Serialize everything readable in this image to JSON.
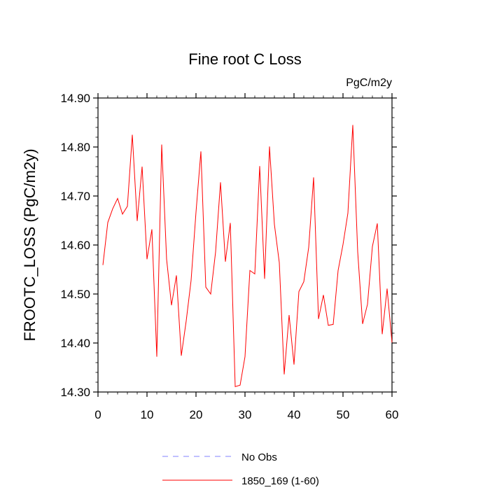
{
  "chart_data": {
    "type": "line",
    "title": "Fine root C Loss",
    "units": "PgC/m2y",
    "ylabel": "FROOTC_LOSS  (PgC/m2y)",
    "xlabel": "",
    "xlim": [
      0,
      60
    ],
    "ylim": [
      14.3,
      14.9
    ],
    "x_ticks": [
      0,
      10,
      20,
      30,
      40,
      50,
      60
    ],
    "y_ticks": [
      14.3,
      14.4,
      14.5,
      14.6,
      14.7,
      14.8,
      14.9
    ],
    "x_tick_labels": [
      "0",
      "10",
      "20",
      "30",
      "40",
      "50",
      "60"
    ],
    "y_tick_labels": [
      "14.30",
      "14.40",
      "14.50",
      "14.60",
      "14.70",
      "14.80",
      "14.90"
    ],
    "grid": false,
    "legend_position": "bottom",
    "series": [
      {
        "name": "1850_169 (1-60)",
        "color": "#ff0000",
        "style": "solid",
        "x": [
          1,
          2,
          3,
          4,
          5,
          6,
          7,
          8,
          9,
          10,
          11,
          12,
          13,
          14,
          15,
          16,
          17,
          18,
          19,
          20,
          21,
          22,
          23,
          24,
          25,
          26,
          27,
          28,
          29,
          30,
          31,
          32,
          33,
          34,
          35,
          36,
          37,
          38,
          39,
          40,
          41,
          42,
          43,
          44,
          45,
          46,
          47,
          48,
          49,
          50,
          51,
          52,
          53,
          54,
          55,
          56,
          57,
          58,
          59,
          60
        ],
        "values": [
          14.559,
          14.646,
          14.674,
          14.695,
          14.663,
          14.679,
          14.825,
          14.649,
          14.76,
          14.571,
          14.632,
          14.372,
          14.805,
          14.571,
          14.477,
          14.538,
          14.374,
          14.445,
          14.528,
          14.667,
          14.791,
          14.514,
          14.5,
          14.586,
          14.728,
          14.566,
          14.645,
          14.311,
          14.314,
          14.372,
          14.548,
          14.541,
          14.761,
          14.531,
          14.801,
          14.642,
          14.564,
          14.336,
          14.457,
          14.356,
          14.505,
          14.525,
          14.595,
          14.738,
          14.449,
          14.498,
          14.436,
          14.438,
          14.548,
          14.601,
          14.665,
          14.845,
          14.586,
          14.439,
          14.479,
          14.597,
          14.644,
          14.418,
          14.511,
          14.401
        ]
      },
      {
        "name": "No Obs",
        "color": "#8080ff",
        "style": "dashed",
        "x": [],
        "values": []
      }
    ]
  }
}
